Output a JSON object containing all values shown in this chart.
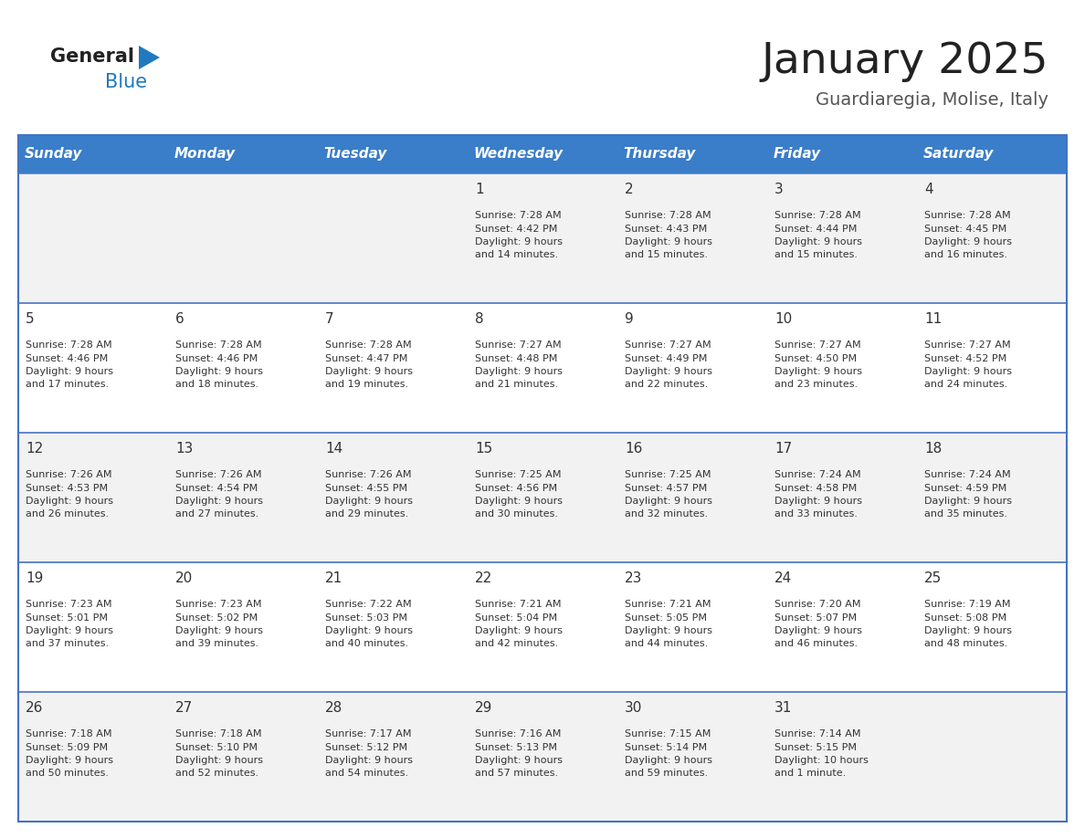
{
  "title": "January 2025",
  "subtitle": "Guardiaregia, Molise, Italy",
  "days_of_week": [
    "Sunday",
    "Monday",
    "Tuesday",
    "Wednesday",
    "Thursday",
    "Friday",
    "Saturday"
  ],
  "header_bg": "#3A7DC9",
  "header_text_color": "#FFFFFF",
  "row_bg_odd": "#F2F2F2",
  "row_bg_even": "#FFFFFF",
  "cell_border_color": "#4472C4",
  "day_number_color": "#333333",
  "info_text_color": "#333333",
  "title_color": "#222222",
  "subtitle_color": "#555555",
  "logo_general_color": "#222222",
  "logo_blue_color": "#2079C0",
  "calendar_data": [
    {
      "day": 1,
      "col": 3,
      "row": 0,
      "sunrise": "7:28 AM",
      "sunset": "4:42 PM",
      "daylight": "9 hours\nand 14 minutes."
    },
    {
      "day": 2,
      "col": 4,
      "row": 0,
      "sunrise": "7:28 AM",
      "sunset": "4:43 PM",
      "daylight": "9 hours\nand 15 minutes."
    },
    {
      "day": 3,
      "col": 5,
      "row": 0,
      "sunrise": "7:28 AM",
      "sunset": "4:44 PM",
      "daylight": "9 hours\nand 15 minutes."
    },
    {
      "day": 4,
      "col": 6,
      "row": 0,
      "sunrise": "7:28 AM",
      "sunset": "4:45 PM",
      "daylight": "9 hours\nand 16 minutes."
    },
    {
      "day": 5,
      "col": 0,
      "row": 1,
      "sunrise": "7:28 AM",
      "sunset": "4:46 PM",
      "daylight": "9 hours\nand 17 minutes."
    },
    {
      "day": 6,
      "col": 1,
      "row": 1,
      "sunrise": "7:28 AM",
      "sunset": "4:46 PM",
      "daylight": "9 hours\nand 18 minutes."
    },
    {
      "day": 7,
      "col": 2,
      "row": 1,
      "sunrise": "7:28 AM",
      "sunset": "4:47 PM",
      "daylight": "9 hours\nand 19 minutes."
    },
    {
      "day": 8,
      "col": 3,
      "row": 1,
      "sunrise": "7:27 AM",
      "sunset": "4:48 PM",
      "daylight": "9 hours\nand 21 minutes."
    },
    {
      "day": 9,
      "col": 4,
      "row": 1,
      "sunrise": "7:27 AM",
      "sunset": "4:49 PM",
      "daylight": "9 hours\nand 22 minutes."
    },
    {
      "day": 10,
      "col": 5,
      "row": 1,
      "sunrise": "7:27 AM",
      "sunset": "4:50 PM",
      "daylight": "9 hours\nand 23 minutes."
    },
    {
      "day": 11,
      "col": 6,
      "row": 1,
      "sunrise": "7:27 AM",
      "sunset": "4:52 PM",
      "daylight": "9 hours\nand 24 minutes."
    },
    {
      "day": 12,
      "col": 0,
      "row": 2,
      "sunrise": "7:26 AM",
      "sunset": "4:53 PM",
      "daylight": "9 hours\nand 26 minutes."
    },
    {
      "day": 13,
      "col": 1,
      "row": 2,
      "sunrise": "7:26 AM",
      "sunset": "4:54 PM",
      "daylight": "9 hours\nand 27 minutes."
    },
    {
      "day": 14,
      "col": 2,
      "row": 2,
      "sunrise": "7:26 AM",
      "sunset": "4:55 PM",
      "daylight": "9 hours\nand 29 minutes."
    },
    {
      "day": 15,
      "col": 3,
      "row": 2,
      "sunrise": "7:25 AM",
      "sunset": "4:56 PM",
      "daylight": "9 hours\nand 30 minutes."
    },
    {
      "day": 16,
      "col": 4,
      "row": 2,
      "sunrise": "7:25 AM",
      "sunset": "4:57 PM",
      "daylight": "9 hours\nand 32 minutes."
    },
    {
      "day": 17,
      "col": 5,
      "row": 2,
      "sunrise": "7:24 AM",
      "sunset": "4:58 PM",
      "daylight": "9 hours\nand 33 minutes."
    },
    {
      "day": 18,
      "col": 6,
      "row": 2,
      "sunrise": "7:24 AM",
      "sunset": "4:59 PM",
      "daylight": "9 hours\nand 35 minutes."
    },
    {
      "day": 19,
      "col": 0,
      "row": 3,
      "sunrise": "7:23 AM",
      "sunset": "5:01 PM",
      "daylight": "9 hours\nand 37 minutes."
    },
    {
      "day": 20,
      "col": 1,
      "row": 3,
      "sunrise": "7:23 AM",
      "sunset": "5:02 PM",
      "daylight": "9 hours\nand 39 minutes."
    },
    {
      "day": 21,
      "col": 2,
      "row": 3,
      "sunrise": "7:22 AM",
      "sunset": "5:03 PM",
      "daylight": "9 hours\nand 40 minutes."
    },
    {
      "day": 22,
      "col": 3,
      "row": 3,
      "sunrise": "7:21 AM",
      "sunset": "5:04 PM",
      "daylight": "9 hours\nand 42 minutes."
    },
    {
      "day": 23,
      "col": 4,
      "row": 3,
      "sunrise": "7:21 AM",
      "sunset": "5:05 PM",
      "daylight": "9 hours\nand 44 minutes."
    },
    {
      "day": 24,
      "col": 5,
      "row": 3,
      "sunrise": "7:20 AM",
      "sunset": "5:07 PM",
      "daylight": "9 hours\nand 46 minutes."
    },
    {
      "day": 25,
      "col": 6,
      "row": 3,
      "sunrise": "7:19 AM",
      "sunset": "5:08 PM",
      "daylight": "9 hours\nand 48 minutes."
    },
    {
      "day": 26,
      "col": 0,
      "row": 4,
      "sunrise": "7:18 AM",
      "sunset": "5:09 PM",
      "daylight": "9 hours\nand 50 minutes."
    },
    {
      "day": 27,
      "col": 1,
      "row": 4,
      "sunrise": "7:18 AM",
      "sunset": "5:10 PM",
      "daylight": "9 hours\nand 52 minutes."
    },
    {
      "day": 28,
      "col": 2,
      "row": 4,
      "sunrise": "7:17 AM",
      "sunset": "5:12 PM",
      "daylight": "9 hours\nand 54 minutes."
    },
    {
      "day": 29,
      "col": 3,
      "row": 4,
      "sunrise": "7:16 AM",
      "sunset": "5:13 PM",
      "daylight": "9 hours\nand 57 minutes."
    },
    {
      "day": 30,
      "col": 4,
      "row": 4,
      "sunrise": "7:15 AM",
      "sunset": "5:14 PM",
      "daylight": "9 hours\nand 59 minutes."
    },
    {
      "day": 31,
      "col": 5,
      "row": 4,
      "sunrise": "7:14 AM",
      "sunset": "5:15 PM",
      "daylight": "10 hours\nand 1 minute."
    }
  ]
}
